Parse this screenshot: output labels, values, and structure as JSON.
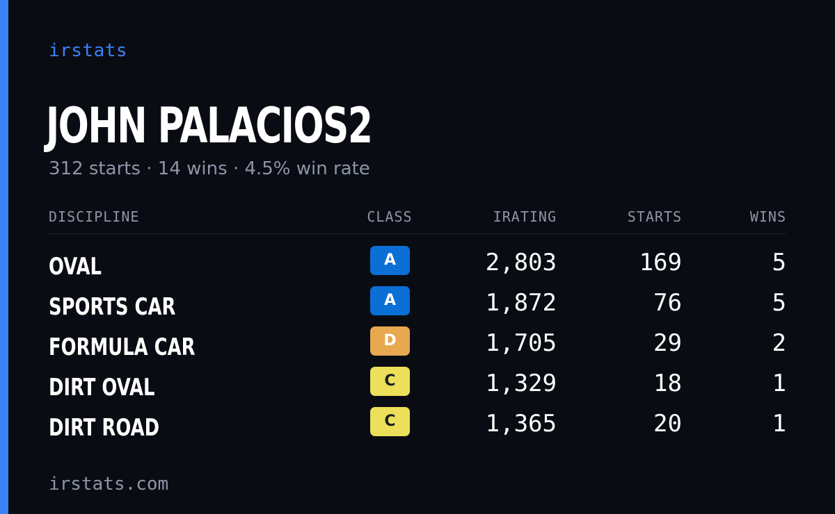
{
  "brand": "irstats",
  "driver": {
    "name": "JOHN PALACIOS2",
    "summary": "312 starts · 14 wins · 4.5% win rate"
  },
  "table": {
    "headers": {
      "discipline": "DISCIPLINE",
      "class": "CLASS",
      "irating": "IRATING",
      "starts": "STARTS",
      "wins": "WINS"
    },
    "rows": [
      {
        "discipline": "OVAL",
        "class": "A",
        "class_color": "#0b6fd6",
        "class_text_color": "#ffffff",
        "irating": "2,803",
        "starts": "169",
        "wins": "5"
      },
      {
        "discipline": "SPORTS CAR",
        "class": "A",
        "class_color": "#0b6fd6",
        "class_text_color": "#ffffff",
        "irating": "1,872",
        "starts": "76",
        "wins": "5"
      },
      {
        "discipline": "FORMULA CAR",
        "class": "D",
        "class_color": "#e8a84f",
        "class_text_color": "#ffffff",
        "irating": "1,705",
        "starts": "29",
        "wins": "2"
      },
      {
        "discipline": "DIRT OVAL",
        "class": "C",
        "class_color": "#ece05a",
        "class_text_color": "#1b1d24",
        "irating": "1,329",
        "starts": "18",
        "wins": "1"
      },
      {
        "discipline": "DIRT ROAD",
        "class": "C",
        "class_color": "#ece05a",
        "class_text_color": "#1b1d24",
        "irating": "1,365",
        "starts": "20",
        "wins": "1"
      }
    ]
  },
  "footer": "irstats.com",
  "colors": {
    "background": "#0a0c13",
    "accent": "#3b82f6",
    "muted_text": "#8d96a7"
  }
}
